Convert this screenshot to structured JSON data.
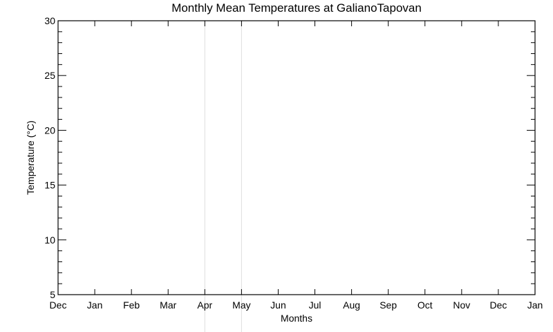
{
  "chart_data": {
    "type": "line",
    "title": "Monthly Mean Temperatures at GalianoTapovan",
    "xlabel": "Months",
    "ylabel": "Temperature (°C)",
    "categories": [
      "Dec",
      "Jan",
      "Feb",
      "Mar",
      "Apr",
      "May",
      "Jun",
      "Jul",
      "Aug",
      "Sep",
      "Oct",
      "Nov",
      "Dec",
      "Jan"
    ],
    "ylim": [
      5,
      30
    ],
    "y_major_ticks": [
      5,
      10,
      15,
      20,
      25,
      30
    ],
    "y_minor_step": 1,
    "series": [],
    "grid": false,
    "faint_vertical_markers": [
      "Apr",
      "May"
    ],
    "colors": {
      "axes": "#000000",
      "marker": "#dddddd",
      "background": "#ffffff"
    }
  }
}
